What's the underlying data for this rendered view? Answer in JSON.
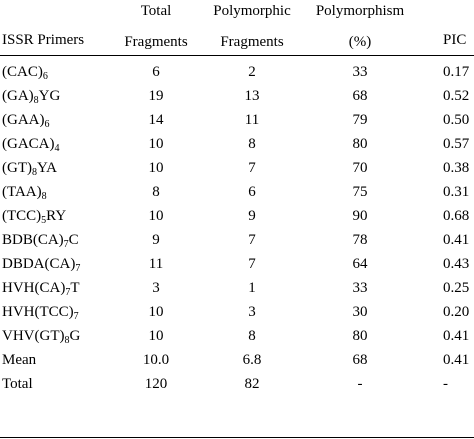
{
  "table": {
    "headers": {
      "primer": "ISSR Primers",
      "total_line1": "Total",
      "total_line2": "Fragments",
      "poly_line1": "Polymorphic",
      "poly_line2": "Fragments",
      "pct_line1": "Polymorphism",
      "pct_line2": "(%)",
      "pic": "PIC"
    },
    "rows": [
      {
        "primer": [
          {
            "t": "(CAC)"
          },
          {
            "t": "6",
            "sub": true
          }
        ],
        "total": "6",
        "poly": "2",
        "pct": "33",
        "pic": "0.17"
      },
      {
        "primer": [
          {
            "t": "(GA)"
          },
          {
            "t": "8",
            "sub": true
          },
          {
            "t": "YG"
          }
        ],
        "total": "19",
        "poly": "13",
        "pct": "68",
        "pic": "0.52"
      },
      {
        "primer": [
          {
            "t": "(GAA)"
          },
          {
            "t": "6",
            "sub": true
          }
        ],
        "total": "14",
        "poly": "11",
        "pct": "79",
        "pic": "0.50"
      },
      {
        "primer": [
          {
            "t": "(GACA)"
          },
          {
            "t": "4",
            "sub": true
          }
        ],
        "total": "10",
        "poly": "8",
        "pct": "80",
        "pic": "0.57"
      },
      {
        "primer": [
          {
            "t": "(GT)"
          },
          {
            "t": "8",
            "sub": true
          },
          {
            "t": "YA"
          }
        ],
        "total": "10",
        "poly": "7",
        "pct": "70",
        "pic": "0.38"
      },
      {
        "primer": [
          {
            "t": "(TAA)"
          },
          {
            "t": "8",
            "sub": true
          }
        ],
        "total": "8",
        "poly": "6",
        "pct": "75",
        "pic": "0.31"
      },
      {
        "primer": [
          {
            "t": "(TCC)"
          },
          {
            "t": "5",
            "sub": true
          },
          {
            "t": "RY"
          }
        ],
        "total": "10",
        "poly": "9",
        "pct": "90",
        "pic": "0.68"
      },
      {
        "primer": [
          {
            "t": "BDB(CA)"
          },
          {
            "t": "7",
            "sub": true
          },
          {
            "t": "C"
          }
        ],
        "total": "9",
        "poly": "7",
        "pct": "78",
        "pic": "0.41"
      },
      {
        "primer": [
          {
            "t": "DBDA(CA)"
          },
          {
            "t": "7",
            "sub": true
          }
        ],
        "total": "11",
        "poly": "7",
        "pct": "64",
        "pic": "0.43"
      },
      {
        "primer": [
          {
            "t": "HVH(CA)"
          },
          {
            "t": "7",
            "sub": true
          },
          {
            "t": "T"
          }
        ],
        "total": "3",
        "poly": "1",
        "pct": "33",
        "pic": "0.25"
      },
      {
        "primer": [
          {
            "t": "HVH(TCC)"
          },
          {
            "t": "7",
            "sub": true
          }
        ],
        "total": "10",
        "poly": "3",
        "pct": "30",
        "pic": "0.20"
      },
      {
        "primer": [
          {
            "t": "VHV(GT)"
          },
          {
            "t": "8",
            "sub": true
          },
          {
            "t": "G"
          }
        ],
        "total": "10",
        "poly": "8",
        "pct": "80",
        "pic": "0.41"
      },
      {
        "primer": [
          {
            "t": "Mean"
          }
        ],
        "total": "10.0",
        "poly": "6.8",
        "pct": "68",
        "pic": "0.41"
      },
      {
        "primer": [
          {
            "t": "Total"
          }
        ],
        "total": "120",
        "poly": "82",
        "pct": "-",
        "pic": "-"
      }
    ]
  }
}
